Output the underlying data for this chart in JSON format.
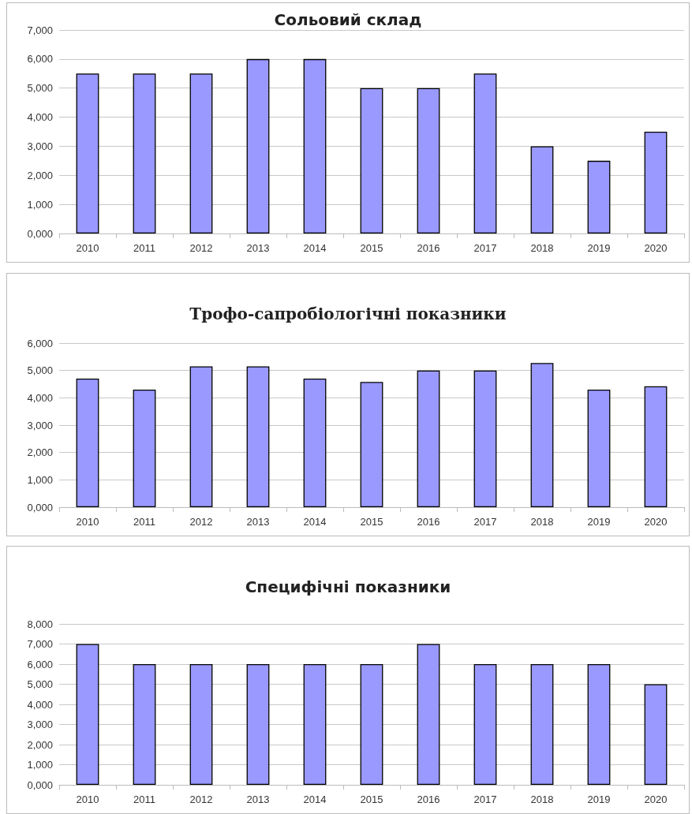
{
  "chart_data": [
    {
      "type": "bar",
      "title": "Сольовий склад",
      "categories": [
        "2010",
        "2011",
        "2012",
        "2013",
        "2014",
        "2015",
        "2016",
        "2017",
        "2018",
        "2019",
        "2020"
      ],
      "values": [
        5.5,
        5.5,
        5.5,
        6,
        6,
        5,
        5,
        5.5,
        3,
        2.5,
        3.5
      ],
      "color": "#9999ff",
      "ylim": [
        0,
        7
      ],
      "yticks": [
        {
          "value": 0,
          "label": "0,000"
        },
        {
          "value": 1,
          "label": "1,000"
        },
        {
          "value": 2,
          "label": "2,000"
        },
        {
          "value": 3,
          "label": "3,000"
        },
        {
          "value": 4,
          "label": "4,000"
        },
        {
          "value": 5,
          "label": "5,000"
        },
        {
          "value": 6,
          "label": "6,000"
        },
        {
          "value": 7,
          "label": "7,000"
        }
      ],
      "grid": "y"
    },
    {
      "type": "bar",
      "title": "Трофо-сапробіологічні показники",
      "categories": [
        "2010",
        "2011",
        "2012",
        "2013",
        "2014",
        "2015",
        "2016",
        "2017",
        "2018",
        "2019",
        "2020"
      ],
      "values": [
        4.7,
        4.3,
        5.15,
        5.15,
        4.7,
        4.58,
        5,
        5,
        5.27,
        4.3,
        4.42
      ],
      "color": "#9999ff",
      "ylim": [
        0,
        6
      ],
      "yticks": [
        {
          "value": 0,
          "label": "0,000"
        },
        {
          "value": 1,
          "label": "1,000"
        },
        {
          "value": 2,
          "label": "2,000"
        },
        {
          "value": 3,
          "label": "3,000"
        },
        {
          "value": 4,
          "label": "4,000"
        },
        {
          "value": 5,
          "label": "5,000"
        },
        {
          "value": 6,
          "label": "6,000"
        }
      ],
      "grid": "y"
    },
    {
      "type": "bar",
      "title": "Специфічні показники",
      "categories": [
        "2010",
        "2011",
        "2012",
        "2013",
        "2014",
        "2015",
        "2016",
        "2017",
        "2018",
        "2019",
        "2020"
      ],
      "values": [
        7,
        6,
        6,
        6,
        6,
        6,
        7,
        6,
        6,
        6,
        5
      ],
      "color": "#9999ff",
      "ylim": [
        0,
        8
      ],
      "yticks": [
        {
          "value": 0,
          "label": "0,000"
        },
        {
          "value": 1,
          "label": "1,000"
        },
        {
          "value": 2,
          "label": "2,000"
        },
        {
          "value": 3,
          "label": "3,000"
        },
        {
          "value": 4,
          "label": "4,000"
        },
        {
          "value": 5,
          "label": "5,000"
        },
        {
          "value": 6,
          "label": "6,000"
        },
        {
          "value": 7,
          "label": "7,000"
        },
        {
          "value": 8,
          "label": "8,000"
        }
      ],
      "grid": "y"
    }
  ]
}
